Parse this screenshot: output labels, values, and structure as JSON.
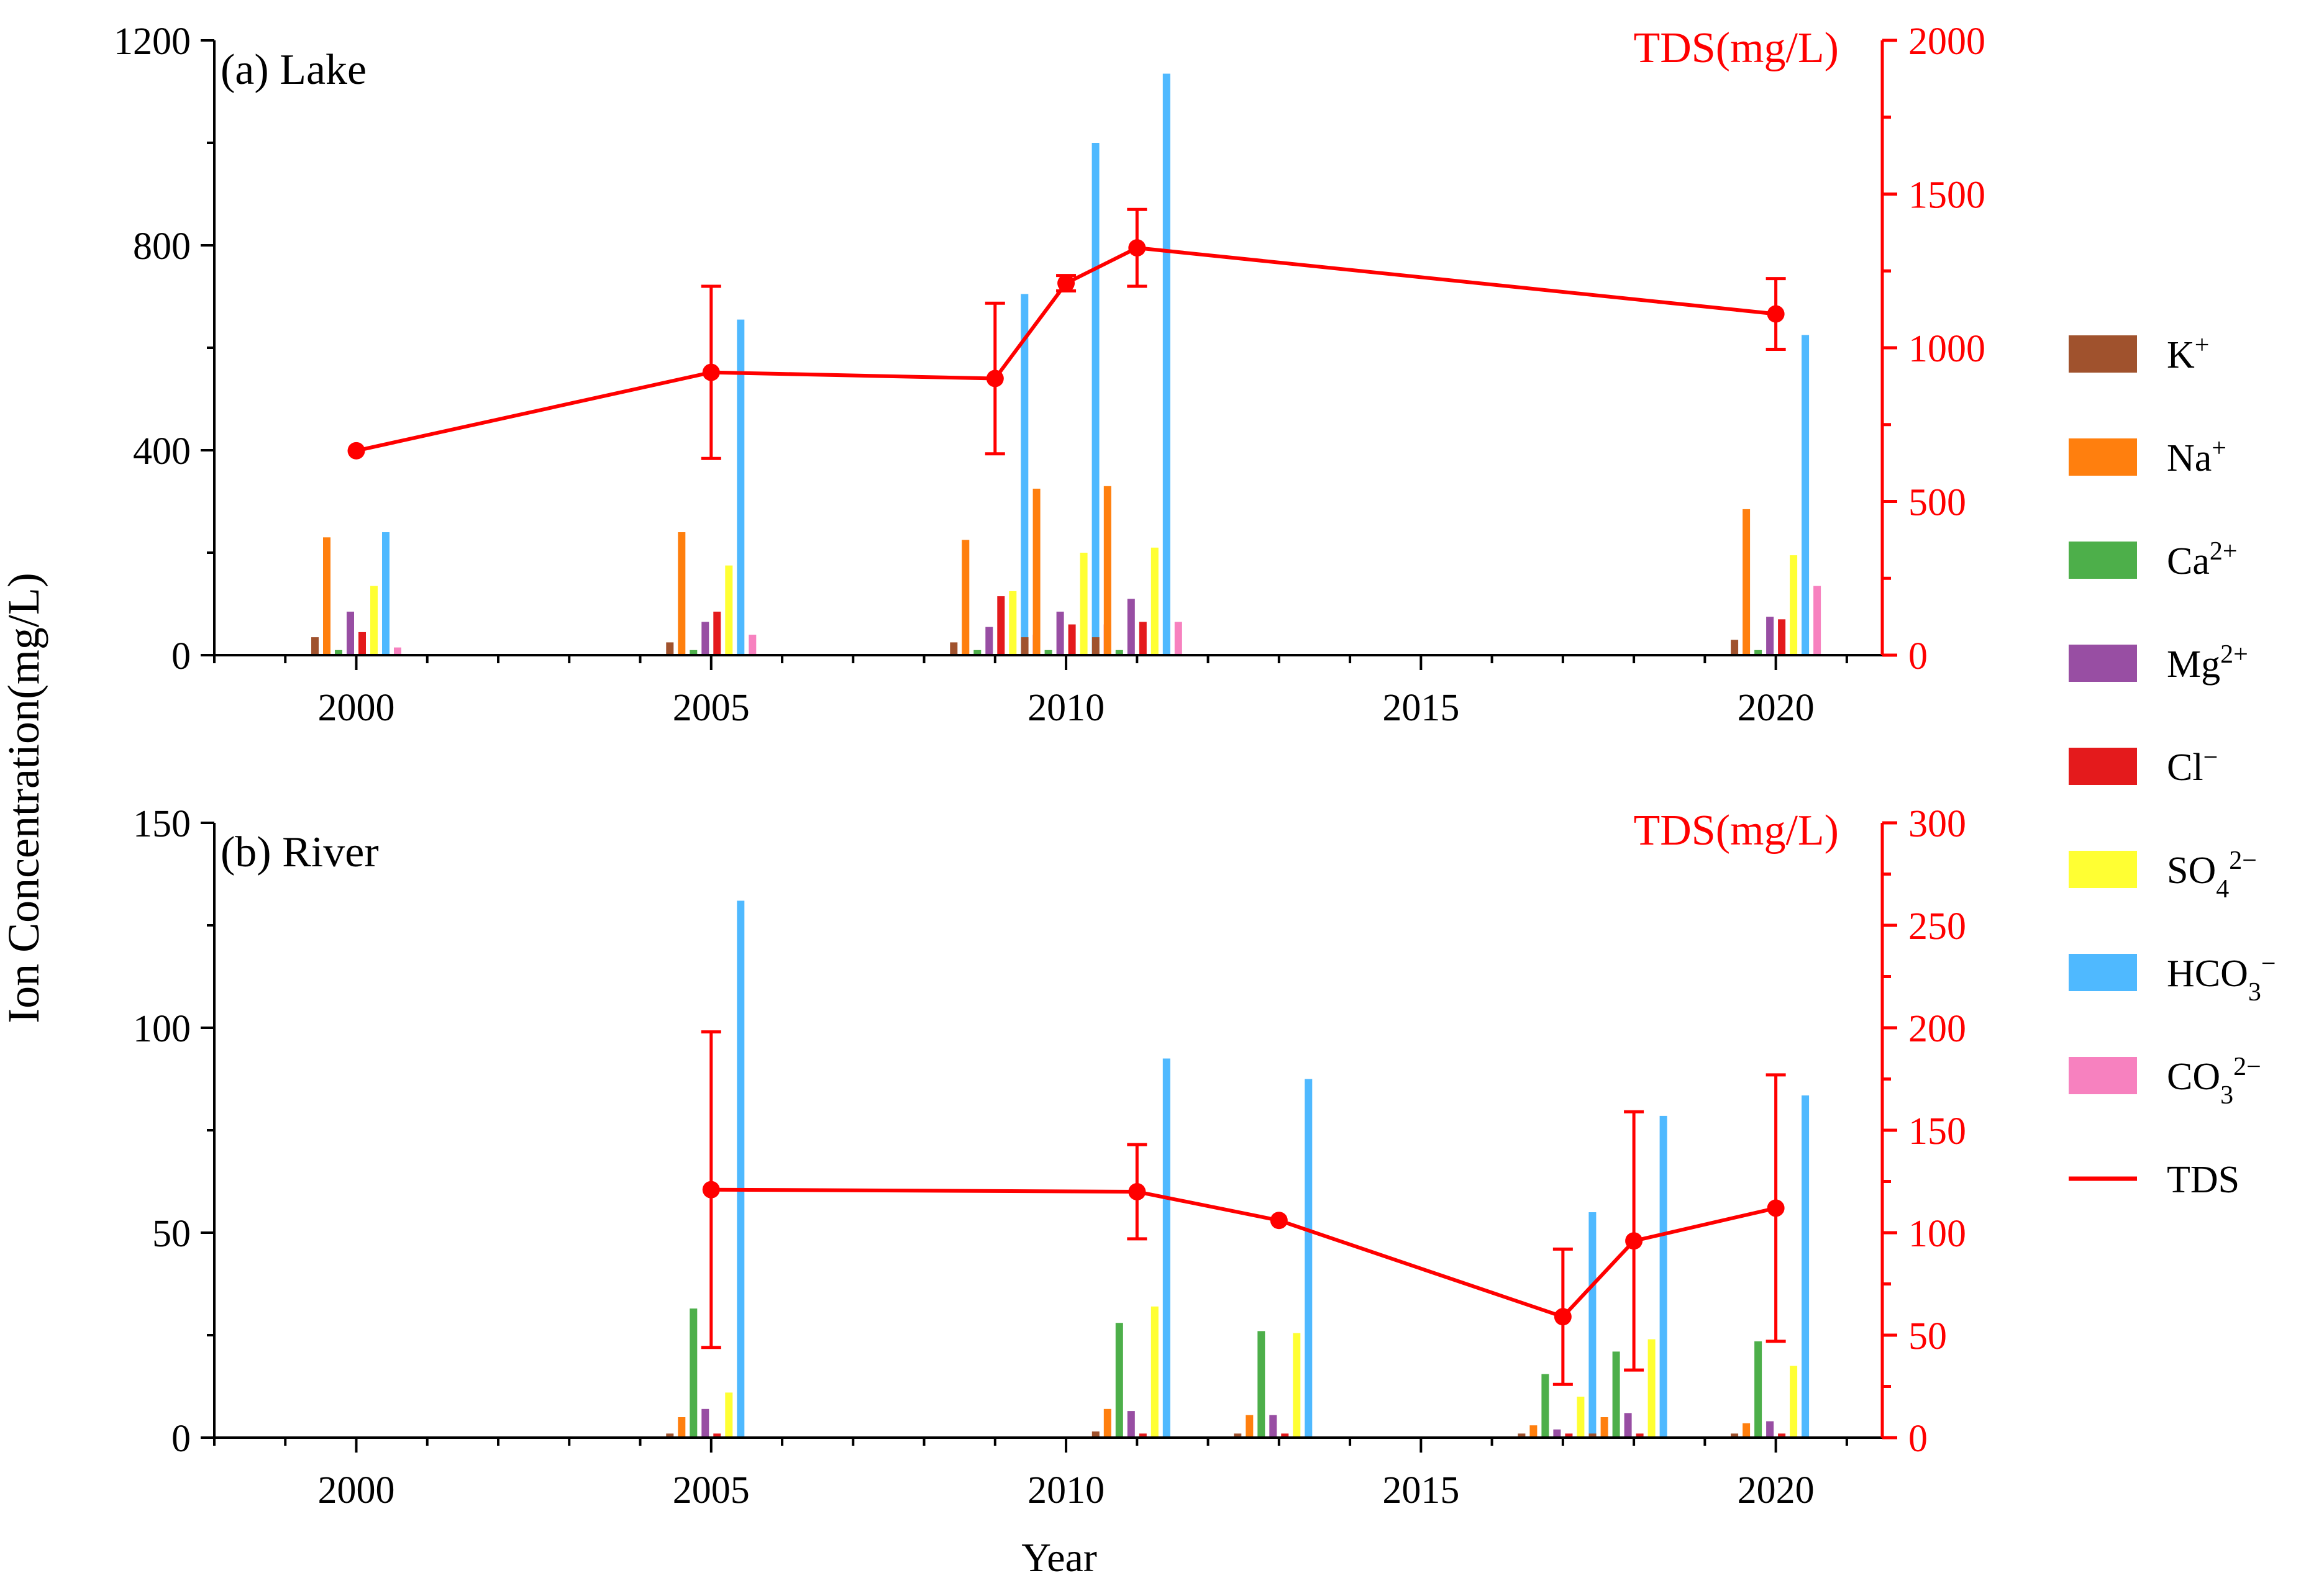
{
  "figure": {
    "ylabel": "Ion Concentration(mg/L)",
    "xlabel": "Year"
  },
  "legend": {
    "items": [
      {
        "key": "K",
        "base": "K",
        "sup": "+",
        "sub": "",
        "color": "#a0522d"
      },
      {
        "key": "Na",
        "base": "Na",
        "sup": "+",
        "sub": "",
        "color": "#ff7f0e"
      },
      {
        "key": "Ca",
        "base": "Ca",
        "sup": "2+",
        "sub": "",
        "color": "#4daf4a"
      },
      {
        "key": "Mg",
        "base": "Mg",
        "sup": "2+",
        "sub": "",
        "color": "#984ea3"
      },
      {
        "key": "Cl",
        "base": "Cl",
        "sup": "−",
        "sub": "",
        "color": "#e41a1c"
      },
      {
        "key": "SO4",
        "base": "SO",
        "sup": "2−",
        "sub": "4",
        "color": "#ffff33"
      },
      {
        "key": "HCO3",
        "base": "HCO",
        "sup": "−",
        "sub": "3",
        "color": "#4fb9ff"
      },
      {
        "key": "CO3",
        "base": "CO",
        "sup": "2−",
        "sub": "3",
        "color": "#f781bf"
      },
      {
        "key": "TDS",
        "base": "TDS",
        "sup": "",
        "sub": "",
        "color": "#ff0000",
        "line": true
      }
    ]
  },
  "chart_data": [
    {
      "type": "bar",
      "panel_label": "(a) Lake",
      "right_title": "TDS(mg/L)",
      "xlim": [
        1998,
        2021.5
      ],
      "xticks": [
        2000,
        2005,
        2010,
        2015,
        2020
      ],
      "ylim": [
        0,
        1200
      ],
      "yticks": [
        0,
        400,
        800,
        1200
      ],
      "y2lim": [
        0,
        2000
      ],
      "y2ticks": [
        0,
        500,
        1000,
        1500,
        2000
      ],
      "ions": [
        "K",
        "Na",
        "Ca",
        "Mg",
        "Cl",
        "SO4",
        "HCO3",
        "CO3"
      ],
      "groups": [
        {
          "year": 2000,
          "values": [
            35,
            230,
            10,
            85,
            45,
            135,
            240,
            15
          ]
        },
        {
          "year": 2005,
          "values": [
            25,
            240,
            10,
            65,
            85,
            175,
            655,
            40
          ]
        },
        {
          "year": 2009,
          "values": [
            25,
            225,
            10,
            55,
            115,
            125,
            705,
            40
          ]
        },
        {
          "year": 2010,
          "values": [
            35,
            325,
            10,
            85,
            60,
            200,
            1000,
            60
          ]
        },
        {
          "year": 2011,
          "values": [
            35,
            330,
            10,
            110,
            65,
            210,
            1135,
            65
          ]
        },
        {
          "year": 2020,
          "values": [
            30,
            285,
            10,
            75,
            70,
            195,
            625,
            135
          ]
        }
      ],
      "tds": {
        "x": [
          2000,
          2005,
          2009,
          2010,
          2011,
          2020
        ],
        "y": [
          665,
          920,
          900,
          1210,
          1325,
          1110
        ],
        "err": [
          0,
          280,
          245,
          25,
          125,
          115
        ]
      }
    },
    {
      "type": "bar",
      "panel_label": "(b) River",
      "right_title": "TDS(mg/L)",
      "xlim": [
        1998,
        2021.5
      ],
      "xticks": [
        2000,
        2005,
        2010,
        2015,
        2020
      ],
      "ylim": [
        0,
        150
      ],
      "yticks": [
        0,
        50,
        100,
        150
      ],
      "y2lim": [
        0,
        300
      ],
      "y2ticks": [
        0,
        50,
        100,
        150,
        200,
        250,
        300
      ],
      "ions": [
        "K",
        "Na",
        "Ca",
        "Mg",
        "Cl",
        "SO4",
        "HCO3",
        "CO3"
      ],
      "groups": [
        {
          "year": 2005,
          "values": [
            1,
            5,
            31.5,
            7,
            1,
            11,
            131,
            0
          ]
        },
        {
          "year": 2011,
          "values": [
            1.5,
            7,
            28,
            6.5,
            1,
            32,
            92.5,
            0
          ]
        },
        {
          "year": 2013,
          "values": [
            1,
            5.5,
            26,
            5.5,
            1,
            25.5,
            87.5,
            0
          ]
        },
        {
          "year": 2017,
          "values": [
            1,
            3,
            15.5,
            2,
            1,
            10,
            55,
            0
          ]
        },
        {
          "year": 2018,
          "values": [
            1,
            5,
            21,
            6,
            1,
            24,
            78.5,
            0
          ]
        },
        {
          "year": 2020,
          "values": [
            1,
            3.5,
            23.5,
            4,
            1,
            17.5,
            83.5,
            0
          ]
        }
      ],
      "tds": {
        "x": [
          2005,
          2011,
          2013,
          2017,
          2018,
          2020
        ],
        "y": [
          121,
          120,
          106,
          59,
          96,
          112
        ],
        "err": [
          77,
          23,
          0,
          33,
          63,
          65
        ]
      }
    }
  ]
}
